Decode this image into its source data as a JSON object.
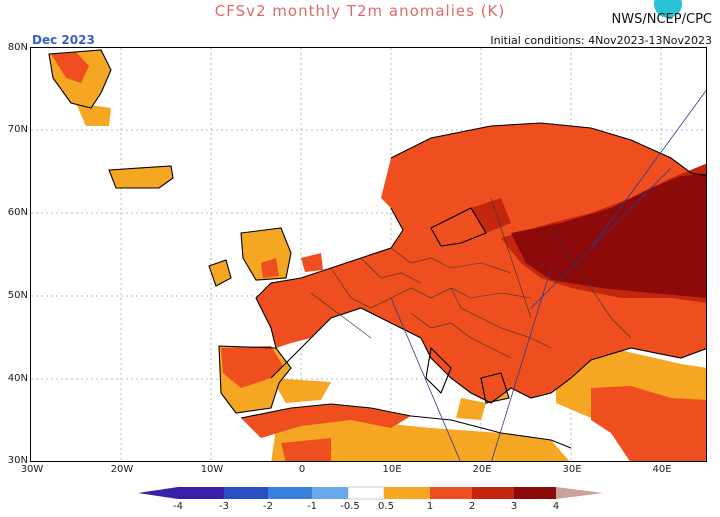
{
  "title": "CFSv2 monthly T2m anomalies (K)",
  "agency": "NWS/NCEP/CPC",
  "initial_conditions": "Initial conditions: 4Nov2023-13Nov2023",
  "month_label": "Dec 2023",
  "lat_labels": [
    "80N",
    "70N",
    "60N",
    "50N",
    "40N",
    "30N"
  ],
  "lon_labels": [
    "30W",
    "20W",
    "10W",
    "0",
    "10E",
    "20E",
    "30E",
    "40E"
  ],
  "legend_ticks": [
    "-4",
    "-3",
    "-2",
    "-1",
    "-0.5",
    "0.5",
    "1",
    "2",
    "3",
    "4"
  ],
  "colors": {
    "c05": "#f5a623",
    "c1": "#ef4f1f",
    "c2": "#c2260f",
    "c3": "#8c0a0a",
    "c4": "#c9a399",
    "cm4": "#3a1fa8",
    "cm3": "#2b4fc2",
    "cm2": "#3a7fdc",
    "cm1": "#6aa8ee",
    "cm05": "#a8d0f5"
  }
}
